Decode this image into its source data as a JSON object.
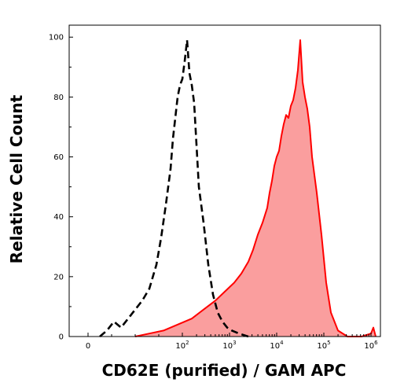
{
  "chart_data": {
    "type": "area",
    "title": "",
    "xlabel": "CD62E (purified) / GAM APC",
    "ylabel": "Relative Cell Count",
    "x_scale": "biexponential",
    "xlim": [
      -0.4,
      6.2
    ],
    "ylim": [
      0,
      104
    ],
    "grid": false,
    "legend": "none",
    "y_ticks": [
      0,
      20,
      40,
      60,
      80,
      100
    ],
    "y_tick_labels": [
      "0",
      "20",
      "40",
      "60",
      "80",
      "100"
    ],
    "x_ticks": [
      0,
      2,
      3,
      4,
      5,
      6
    ],
    "x_tick_labels": [
      {
        "base": "0",
        "exp": ""
      },
      {
        "base": "10",
        "exp": "2"
      },
      {
        "base": "10",
        "exp": "3"
      },
      {
        "base": "10",
        "exp": "4"
      },
      {
        "base": "10",
        "exp": "5"
      },
      {
        "base": "10",
        "exp": "6"
      }
    ],
    "series": [
      {
        "style": "dashed",
        "color": "#000000",
        "fill": "none",
        "x": [
          0.25,
          0.4,
          0.55,
          0.7,
          0.85,
          1.0,
          1.15,
          1.3,
          1.45,
          1.55,
          1.65,
          1.75,
          1.8,
          1.85,
          1.9,
          1.95,
          2.0,
          2.05,
          2.1,
          2.15,
          2.2,
          2.25,
          2.3,
          2.35,
          2.45,
          2.55,
          2.65,
          2.75,
          2.85,
          2.95,
          3.05,
          3.2,
          3.4
        ],
        "y": [
          0,
          2,
          5,
          3,
          6,
          9,
          12,
          16,
          24,
          33,
          44,
          56,
          66,
          73,
          80,
          84,
          86,
          92,
          99,
          88,
          84,
          78,
          64,
          50,
          38,
          24,
          14,
          8,
          5,
          3,
          2,
          1,
          0
        ]
      },
      {
        "style": "solid",
        "color": "#ff0000",
        "fill": "#fa9e9e",
        "x": [
          1.0,
          1.3,
          1.6,
          1.9,
          2.2,
          2.45,
          2.7,
          2.9,
          3.1,
          3.25,
          3.4,
          3.5,
          3.6,
          3.7,
          3.8,
          3.85,
          3.9,
          3.95,
          4.0,
          4.05,
          4.1,
          4.15,
          4.2,
          4.25,
          4.3,
          4.35,
          4.4,
          4.45,
          4.5,
          4.55,
          4.6,
          4.65,
          4.7,
          4.75,
          4.85,
          4.95,
          5.05,
          5.15,
          5.3,
          5.5,
          5.8,
          6.0,
          6.05,
          6.1
        ],
        "y": [
          0,
          1,
          2,
          4,
          6,
          9,
          12,
          15,
          18,
          21,
          25,
          29,
          34,
          38,
          43,
          48,
          52,
          57,
          60,
          62,
          67,
          71,
          74,
          73,
          77,
          79,
          83,
          89,
          99,
          85,
          80,
          76,
          70,
          60,
          48,
          34,
          18,
          8,
          2,
          0,
          0,
          1,
          3,
          0
        ]
      }
    ]
  }
}
